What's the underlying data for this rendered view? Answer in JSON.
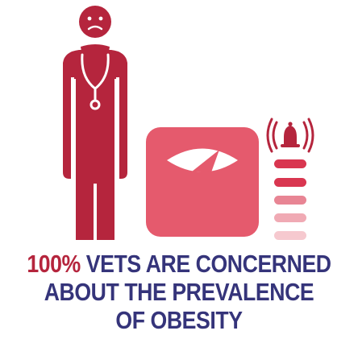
{
  "infographic": {
    "headline": {
      "highlight": "100%",
      "line1_rest": " VETS ARE CONCERNED",
      "line2": "ABOUT THE PREVALENCE",
      "line3": "OF OBESITY"
    },
    "icons": [
      "vet-figure-icon",
      "sad-face-icon",
      "stethoscope-icon",
      "weighing-scale-icon",
      "alarm-bell-icon",
      "level-meter-icon"
    ]
  },
  "colors": {
    "highlight": "#b5253d",
    "text": "#35347a",
    "figure": "#b5253d",
    "scale": "#e55a6d",
    "meter_top": "#d93650",
    "meter_mid": "#e88594",
    "meter_low": "#f6c9cf"
  }
}
